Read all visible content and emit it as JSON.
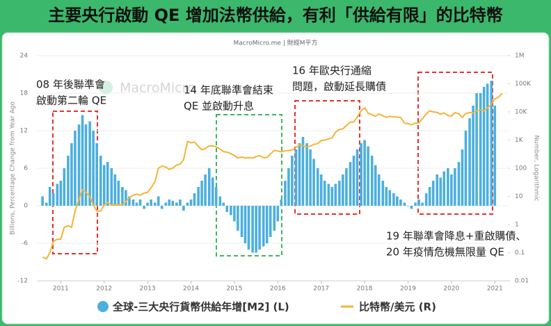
{
  "chart_data": {
    "type": "bar-line",
    "title": "主要央行啟動 QE 增加法幣供給，有利「供給有限」的比特幣",
    "subtitle": "MacroMicro.me | 財經M平方",
    "watermark": "MacroMicro",
    "y_label": "Billions, Percentage Change from Year Ago",
    "y2_label": "Number, Logarithmic",
    "x": [
      2010.58,
      2010.67,
      2010.75,
      2010.83,
      2010.92,
      2011.0,
      2011.08,
      2011.17,
      2011.25,
      2011.33,
      2011.42,
      2011.5,
      2011.58,
      2011.67,
      2011.75,
      2011.83,
      2011.92,
      2012.0,
      2012.08,
      2012.17,
      2012.25,
      2012.33,
      2012.42,
      2012.5,
      2012.58,
      2012.67,
      2012.75,
      2012.83,
      2012.92,
      2013.0,
      2013.08,
      2013.17,
      2013.25,
      2013.33,
      2013.42,
      2013.5,
      2013.58,
      2013.67,
      2013.75,
      2013.83,
      2013.92,
      2014.0,
      2014.08,
      2014.17,
      2014.25,
      2014.33,
      2014.42,
      2014.5,
      2014.58,
      2014.67,
      2014.75,
      2014.83,
      2014.92,
      2015.0,
      2015.08,
      2015.17,
      2015.25,
      2015.33,
      2015.42,
      2015.5,
      2015.58,
      2015.67,
      2015.75,
      2015.83,
      2015.92,
      2016.0,
      2016.08,
      2016.17,
      2016.25,
      2016.33,
      2016.42,
      2016.5,
      2016.58,
      2016.67,
      2016.75,
      2016.83,
      2016.92,
      2017.0,
      2017.08,
      2017.17,
      2017.25,
      2017.33,
      2017.42,
      2017.5,
      2017.58,
      2017.67,
      2017.75,
      2017.83,
      2017.92,
      2018.0,
      2018.08,
      2018.17,
      2018.25,
      2018.33,
      2018.42,
      2018.5,
      2018.58,
      2018.67,
      2018.75,
      2018.83,
      2018.92,
      2019.0,
      2019.08,
      2019.17,
      2019.25,
      2019.33,
      2019.42,
      2019.5,
      2019.58,
      2019.67,
      2019.75,
      2019.83,
      2019.92,
      2020.0,
      2020.08,
      2020.17,
      2020.25,
      2020.33,
      2020.42,
      2020.5,
      2020.58,
      2020.67,
      2020.75,
      2020.83,
      2020.92,
      2021.0,
      2021.08,
      2021.17
    ],
    "series": [
      {
        "name": "全球-三大央行貨幣供給年增[M2] (L)",
        "color": "#4bafdf",
        "axis": "y",
        "values": [
          1.5,
          0.5,
          3,
          2,
          3.5,
          4,
          6,
          8,
          10,
          12,
          13,
          14.5,
          13,
          13.5,
          12,
          10,
          8,
          6.5,
          7,
          6,
          5,
          4,
          3,
          2.5,
          1.5,
          1,
          0.5,
          1,
          -0.5,
          0.5,
          1,
          0.5,
          1.5,
          -0.5,
          0.5,
          1,
          0.8,
          0.5,
          1,
          -0.8,
          0.5,
          1,
          2,
          3,
          4,
          5,
          6,
          4.5,
          3,
          1.5,
          0.5,
          -1,
          -1.5,
          -2.5,
          -4,
          -5,
          -6,
          -7,
          -7.5,
          -7.5,
          -7,
          -6.5,
          -6,
          -5,
          -4,
          -2.5,
          1,
          4,
          6,
          8,
          9,
          10,
          11,
          10,
          9,
          7.5,
          6,
          5,
          4,
          3.5,
          3,
          3.5,
          4,
          5,
          6,
          7,
          8,
          9,
          10,
          10.5,
          9.5,
          8,
          6.5,
          5,
          4,
          3,
          2.5,
          2,
          1.5,
          1,
          0.5,
          0,
          -0.5,
          0.5,
          1,
          0.5,
          2,
          3,
          4,
          5,
          4.5,
          5.5,
          6,
          5,
          6,
          7,
          9,
          12,
          14,
          16,
          18,
          18,
          19,
          19.5,
          20,
          16,
          null,
          null
        ]
      },
      {
        "name": "比特幣/美元 (R)",
        "color": "#f5b335",
        "axis": "y2",
        "values": [
          0.07,
          0.06,
          0.1,
          0.25,
          0.3,
          0.3,
          0.8,
          0.9,
          0.8,
          3,
          8,
          17,
          14,
          10,
          5,
          3,
          3,
          5,
          6,
          5,
          5,
          5,
          5,
          6.5,
          9,
          11,
          12,
          11,
          13,
          14,
          20,
          33,
          100,
          120,
          110,
          90,
          100,
          130,
          140,
          200,
          900,
          800,
          850,
          600,
          450,
          500,
          620,
          620,
          580,
          480,
          390,
          370,
          330,
          280,
          230,
          250,
          230,
          235,
          230,
          260,
          280,
          235,
          240,
          320,
          430,
          410,
          380,
          420,
          420,
          450,
          540,
          670,
          620,
          580,
          610,
          700,
          750,
          960,
          1000,
          1100,
          1200,
          1900,
          2400,
          2500,
          3300,
          4300,
          4400,
          6500,
          11000,
          14000,
          9000,
          8000,
          7000,
          8500,
          7300,
          6400,
          7000,
          6600,
          6600,
          6300,
          4000,
          3800,
          3500,
          4000,
          4100,
          5700,
          8500,
          11000,
          10000,
          9600,
          8300,
          9200,
          7400,
          7200,
          9400,
          8600,
          6400,
          8800,
          9500,
          9200,
          11000,
          11700,
          10800,
          13800,
          19000,
          29000,
          33000,
          46000
        ]
      }
    ],
    "xlim": [
      2010.45,
      2021.3
    ],
    "xticks": [
      2011,
      2012,
      2013,
      2014,
      2015,
      2016,
      2017,
      2018,
      2019,
      2020,
      2021
    ],
    "ylim": [
      -12,
      24
    ],
    "yticks": [
      24,
      18,
      12,
      6,
      0,
      -6,
      -12
    ],
    "y2lim": [
      0.01,
      1000000
    ],
    "y2log": true,
    "y2ticks": [
      {
        "value": 1000000,
        "label": "1M"
      },
      {
        "value": 100000,
        "label": "100K"
      },
      {
        "value": 10000,
        "label": "10K"
      },
      {
        "value": 1000,
        "label": "1K"
      },
      100,
      10,
      1,
      0.1,
      0.01
    ],
    "grid": true,
    "annotations": [
      [
        "08 年後聯準會",
        "啟動第二輪 QE"
      ],
      [
        "14 年底聯準會結束",
        "QE 並啟動升息"
      ],
      [
        "16 年歐央行通縮",
        "問題，啟動延長購債"
      ],
      [
        "19 年聯準會降息+重啟購債、",
        "20 年疫情危機無限量 QE"
      ]
    ]
  }
}
